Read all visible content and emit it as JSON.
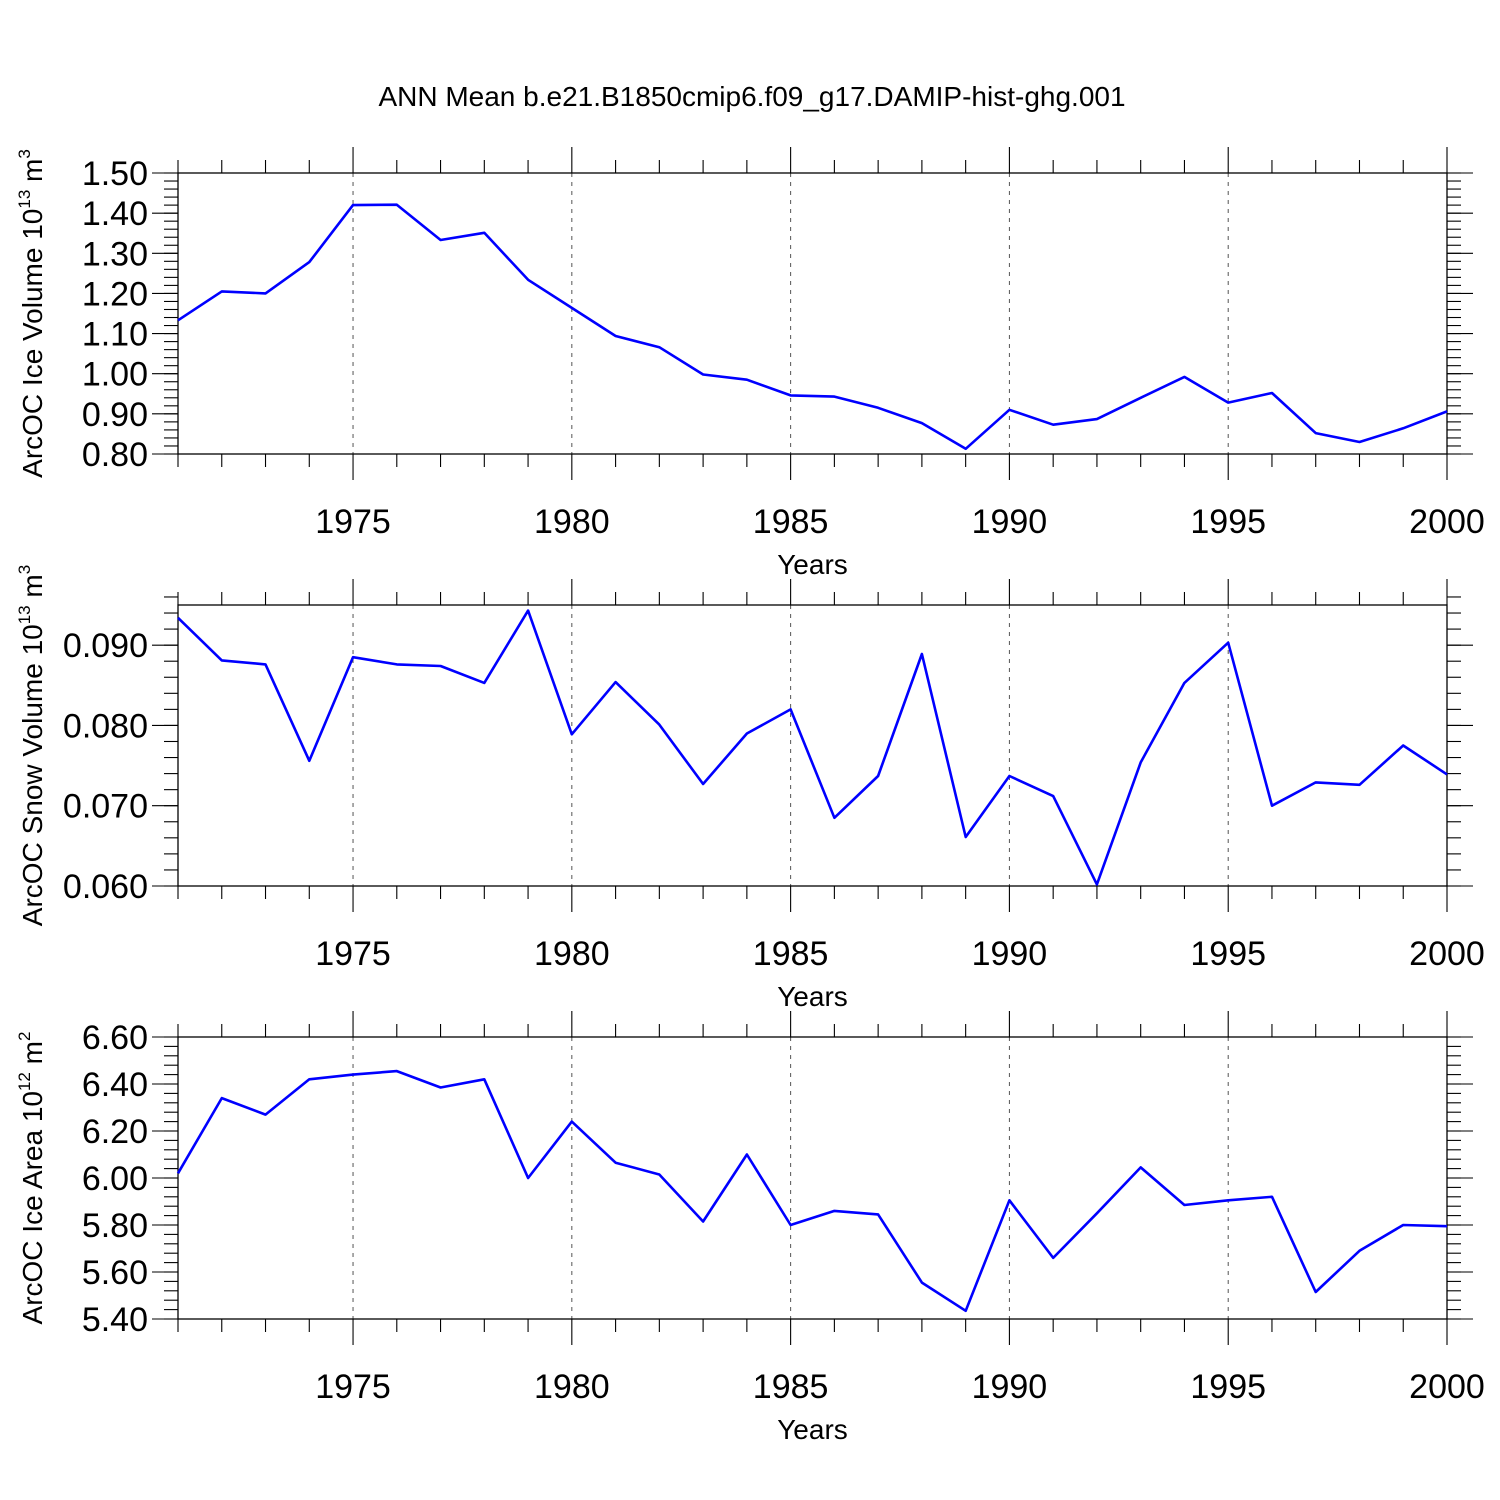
{
  "title": "ANN Mean b.e21.B1850cmip6.f09_g17.DAMIP-hist-ghg.001",
  "chart_data": [
    {
      "type": "line",
      "name": "ice-volume",
      "ylabel": "ArcOC Ice Volume 10",
      "ylabel_exp": "13",
      "ylabel_unit": "m",
      "ylabel_unit_exp": "3",
      "xlabel": "Years",
      "xlim": [
        1971,
        2000
      ],
      "ylim": [
        0.8,
        1.5
      ],
      "x_ticks": [
        1975,
        1980,
        1985,
        1990,
        1995,
        2000
      ],
      "x_tick_labels": [
        "1975",
        "1980",
        "1985",
        "1990",
        "1995",
        "2000"
      ],
      "y_ticks": [
        0.8,
        0.9,
        1.0,
        1.1,
        1.2,
        1.3,
        1.4,
        1.5
      ],
      "y_tick_labels": [
        "0.80",
        "0.90",
        "1.00",
        "1.10",
        "1.20",
        "1.30",
        "1.40",
        "1.50"
      ],
      "y_minor_step": 0.02,
      "grid": "vertical dashed at major x ticks",
      "color": "#0000ff",
      "x": [
        1971,
        1972,
        1973,
        1974,
        1975,
        1976,
        1977,
        1978,
        1979,
        1980,
        1981,
        1982,
        1983,
        1984,
        1985,
        1986,
        1987,
        1988,
        1989,
        1990,
        1991,
        1992,
        1993,
        1994,
        1995,
        1996,
        1997,
        1998,
        1999,
        2000
      ],
      "y": [
        1.133,
        1.205,
        1.2,
        1.278,
        1.42,
        1.421,
        1.333,
        1.351,
        1.234,
        1.164,
        1.094,
        1.066,
        0.998,
        0.985,
        0.946,
        0.943,
        0.915,
        0.877,
        0.813,
        0.91,
        0.873,
        0.887,
        0.94,
        0.992,
        0.928,
        0.952,
        0.852,
        0.83,
        0.864,
        0.906
      ]
    },
    {
      "type": "line",
      "name": "snow-volume",
      "ylabel": "ArcOC Snow Volume 10",
      "ylabel_exp": "13",
      "ylabel_unit": "m",
      "ylabel_unit_exp": "3",
      "xlabel": "Years",
      "xlim": [
        1971,
        2000
      ],
      "ylim": [
        0.06,
        0.095
      ],
      "x_ticks": [
        1975,
        1980,
        1985,
        1990,
        1995,
        2000
      ],
      "x_tick_labels": [
        "1975",
        "1980",
        "1985",
        "1990",
        "1995",
        "2000"
      ],
      "y_ticks": [
        0.06,
        0.07,
        0.08,
        0.09
      ],
      "y_tick_labels": [
        "0.060",
        "0.070",
        "0.080",
        "0.090"
      ],
      "y_minor_step": 0.002,
      "grid": "vertical dashed at major x ticks",
      "color": "#0000ff",
      "x": [
        1971,
        1972,
        1973,
        1974,
        1975,
        1976,
        1977,
        1978,
        1979,
        1980,
        1981,
        1982,
        1983,
        1984,
        1985,
        1986,
        1987,
        1988,
        1989,
        1990,
        1991,
        1992,
        1993,
        1994,
        1995,
        1996,
        1997,
        1998,
        1999,
        2000
      ],
      "y": [
        0.0934,
        0.0881,
        0.0876,
        0.0756,
        0.0885,
        0.0876,
        0.0874,
        0.0853,
        0.0943,
        0.0789,
        0.0854,
        0.0801,
        0.0727,
        0.079,
        0.082,
        0.0685,
        0.0737,
        0.0889,
        0.0661,
        0.0737,
        0.0712,
        0.0602,
        0.0754,
        0.0853,
        0.0903,
        0.07,
        0.0729,
        0.0726,
        0.0775,
        0.0739
      ]
    },
    {
      "type": "line",
      "name": "ice-area",
      "ylabel": "ArcOC Ice Area 10",
      "ylabel_exp": "12",
      "ylabel_unit": "m",
      "ylabel_unit_exp": "2",
      "xlabel": "Years",
      "xlim": [
        1971,
        2000
      ],
      "ylim": [
        5.4,
        6.6
      ],
      "x_ticks": [
        1975,
        1980,
        1985,
        1990,
        1995,
        2000
      ],
      "x_tick_labels": [
        "1975",
        "1980",
        "1985",
        "1990",
        "1995",
        "2000"
      ],
      "y_ticks": [
        5.4,
        5.6,
        5.8,
        6.0,
        6.2,
        6.4,
        6.6
      ],
      "y_tick_labels": [
        "5.40",
        "5.60",
        "5.80",
        "6.00",
        "6.20",
        "6.40",
        "6.60"
      ],
      "y_minor_step": 0.04,
      "grid": "vertical dashed at major x ticks",
      "color": "#0000ff",
      "x": [
        1971,
        1972,
        1973,
        1974,
        1975,
        1976,
        1977,
        1978,
        1979,
        1980,
        1981,
        1982,
        1983,
        1984,
        1985,
        1986,
        1987,
        1988,
        1989,
        1990,
        1991,
        1992,
        1993,
        1994,
        1995,
        1996,
        1997,
        1998,
        1999,
        2000
      ],
      "y": [
        6.02,
        6.34,
        6.27,
        6.42,
        6.44,
        6.455,
        6.385,
        6.42,
        6.0,
        6.24,
        6.065,
        6.015,
        5.815,
        6.1,
        5.8,
        5.86,
        5.845,
        5.555,
        5.435,
        5.905,
        5.66,
        5.85,
        6.045,
        5.885,
        5.905,
        5.92,
        5.515,
        5.69,
        5.8,
        5.795
      ]
    }
  ]
}
